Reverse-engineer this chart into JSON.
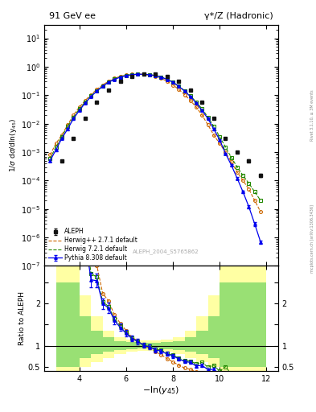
{
  "title_left": "91 GeV ee",
  "title_right": "γ*/Z (Hadronic)",
  "ylabel_main": "1/σ dσ/dln(y_{45})",
  "ylabel_ratio": "Ratio to ALEPH",
  "xlabel": "-ln(y_{45})",
  "watermark": "ALEPH_2004_S5765862",
  "side_label": "Rivet 3.1.10, ≥ 3M events",
  "side_label2": "mcplots.cern.ch [arXiv:1306.3436]",
  "xlim": [
    2.5,
    12.5
  ],
  "ylim_main": [
    1e-07,
    30
  ],
  "ylim_ratio": [
    0.4,
    2.9
  ],
  "aleph_x": [
    3.25,
    3.75,
    4.25,
    4.75,
    5.25,
    5.75,
    6.25,
    6.75,
    7.25,
    7.75,
    8.25,
    8.75,
    9.25,
    9.75,
    10.25,
    10.75,
    11.25,
    11.75
  ],
  "aleph_y": [
    0.0005,
    0.003,
    0.015,
    0.055,
    0.15,
    0.3,
    0.45,
    0.54,
    0.54,
    0.45,
    0.3,
    0.15,
    0.055,
    0.015,
    0.003,
    0.001,
    0.0005,
    0.00015
  ],
  "aleph_xe": [
    0.25,
    0.25,
    0.25,
    0.25,
    0.25,
    0.25,
    0.25,
    0.25,
    0.25,
    0.25,
    0.25,
    0.25,
    0.25,
    0.25,
    0.25,
    0.25,
    0.25,
    0.25
  ],
  "aleph_ye": [
    3e-05,
    0.0002,
    0.0008,
    0.003,
    0.008,
    0.015,
    0.02,
    0.025,
    0.025,
    0.02,
    0.015,
    0.008,
    0.003,
    0.0008,
    0.0002,
    8e-05,
    4e-05,
    2e-05
  ],
  "herwig_pp_x": [
    2.75,
    3.0,
    3.25,
    3.5,
    3.75,
    4.0,
    4.25,
    4.5,
    4.75,
    5.0,
    5.25,
    5.5,
    5.75,
    6.0,
    6.25,
    6.5,
    6.75,
    7.0,
    7.25,
    7.5,
    7.75,
    8.0,
    8.25,
    8.5,
    8.75,
    9.0,
    9.25,
    9.5,
    9.75,
    10.0,
    10.25,
    10.5,
    10.75,
    11.0,
    11.25,
    11.5,
    11.75
  ],
  "herwig_pp_y": [
    0.0008,
    0.002,
    0.004,
    0.009,
    0.02,
    0.038,
    0.065,
    0.105,
    0.16,
    0.23,
    0.31,
    0.39,
    0.46,
    0.51,
    0.54,
    0.55,
    0.54,
    0.51,
    0.46,
    0.39,
    0.31,
    0.23,
    0.16,
    0.105,
    0.065,
    0.038,
    0.02,
    0.009,
    0.004,
    0.002,
    0.001,
    0.00045,
    0.0002,
    0.0001,
    5e-05,
    2e-05,
    8e-06
  ],
  "herwig7_x": [
    2.75,
    3.0,
    3.25,
    3.5,
    3.75,
    4.0,
    4.25,
    4.5,
    4.75,
    5.0,
    5.25,
    5.5,
    5.75,
    6.0,
    6.25,
    6.5,
    6.75,
    7.0,
    7.25,
    7.5,
    7.75,
    8.0,
    8.25,
    8.5,
    8.75,
    9.0,
    9.25,
    9.5,
    9.75,
    10.0,
    10.25,
    10.5,
    10.75,
    11.0,
    11.25,
    11.5,
    11.75
  ],
  "herwig7_y": [
    0.0006,
    0.0015,
    0.0035,
    0.008,
    0.017,
    0.033,
    0.058,
    0.095,
    0.145,
    0.21,
    0.29,
    0.37,
    0.44,
    0.495,
    0.53,
    0.545,
    0.545,
    0.53,
    0.495,
    0.44,
    0.37,
    0.29,
    0.21,
    0.145,
    0.095,
    0.058,
    0.033,
    0.017,
    0.008,
    0.0035,
    0.0015,
    0.00065,
    0.0003,
    0.00015,
    8e-05,
    4e-05,
    2e-05
  ],
  "pythia_x": [
    2.75,
    3.0,
    3.25,
    3.5,
    3.75,
    4.0,
    4.25,
    4.5,
    4.75,
    5.0,
    5.25,
    5.5,
    5.75,
    6.0,
    6.25,
    6.5,
    6.75,
    7.0,
    7.25,
    7.5,
    7.75,
    8.0,
    8.25,
    8.5,
    8.75,
    9.0,
    9.25,
    9.5,
    9.75,
    10.0,
    10.25,
    10.5,
    10.75,
    11.0,
    11.25,
    11.5,
    11.75
  ],
  "pythia_y": [
    0.0005,
    0.0012,
    0.003,
    0.0065,
    0.015,
    0.029,
    0.053,
    0.09,
    0.14,
    0.205,
    0.285,
    0.36,
    0.43,
    0.485,
    0.525,
    0.545,
    0.545,
    0.525,
    0.485,
    0.43,
    0.36,
    0.285,
    0.205,
    0.14,
    0.09,
    0.053,
    0.029,
    0.015,
    0.0065,
    0.0027,
    0.0009,
    0.00035,
    0.00012,
    4e-05,
    1.2e-05,
    3e-06,
    7e-07
  ],
  "pythia_ye": [
    5e-05,
    0.0001,
    0.0002,
    0.0005,
    0.001,
    0.002,
    0.004,
    0.006,
    0.009,
    0.013,
    0.018,
    0.022,
    0.026,
    0.029,
    0.031,
    0.032,
    0.032,
    0.031,
    0.029,
    0.026,
    0.022,
    0.018,
    0.013,
    0.009,
    0.006,
    0.004,
    0.002,
    0.001,
    0.0005,
    0.0002,
    6e-05,
    2.5e-05,
    1e-05,
    4e-06,
    1.5e-06,
    5e-07,
    1e-07
  ],
  "colors": {
    "aleph": "#111111",
    "herwig_pp": "#cc6600",
    "herwig7": "#228800",
    "pythia": "#0000ee"
  },
  "band_yellow_color": "#ffff66",
  "band_yellow_alpha": 0.6,
  "band_green_color": "#55cc55",
  "band_green_alpha": 0.6,
  "band_xedges": [
    3.0,
    3.5,
    4.0,
    4.5,
    5.0,
    5.5,
    6.0,
    6.5,
    7.0,
    7.5,
    8.0,
    8.5,
    9.0,
    9.5,
    10.0,
    10.5,
    11.0,
    11.5,
    12.0
  ],
  "band_yellow_lo": [
    0.4,
    0.4,
    0.5,
    0.6,
    0.7,
    0.8,
    0.85,
    0.88,
    0.88,
    0.85,
    0.8,
    0.7,
    0.6,
    0.5,
    0.4,
    0.4,
    0.4,
    0.4
  ],
  "band_yellow_hi": [
    2.9,
    2.9,
    2.2,
    1.7,
    1.35,
    1.2,
    1.15,
    1.12,
    1.12,
    1.15,
    1.2,
    1.35,
    1.7,
    2.2,
    2.9,
    2.9,
    2.9,
    2.9
  ],
  "band_green_lo": [
    0.5,
    0.5,
    0.7,
    0.8,
    0.85,
    0.9,
    0.92,
    0.94,
    0.94,
    0.92,
    0.9,
    0.85,
    0.8,
    0.7,
    0.5,
    0.5,
    0.5,
    0.5
  ],
  "band_green_hi": [
    2.5,
    2.5,
    1.7,
    1.35,
    1.2,
    1.1,
    1.08,
    1.06,
    1.06,
    1.08,
    1.1,
    1.2,
    1.35,
    1.7,
    2.5,
    2.5,
    2.5,
    2.5
  ]
}
